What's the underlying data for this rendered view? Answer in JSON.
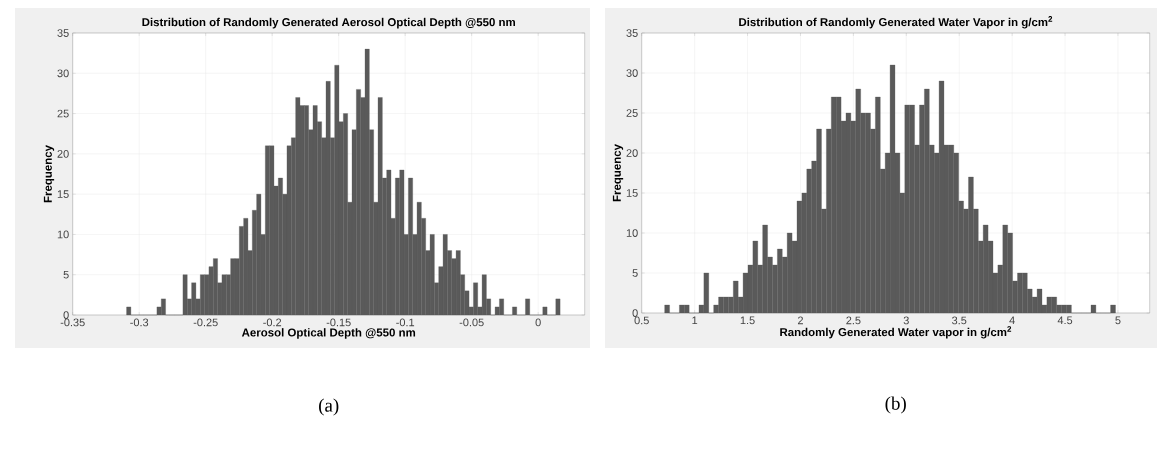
{
  "chart_data": [
    {
      "type": "histogram",
      "title": "Distribution of Randomly Generated Aerosol Optical Depth @550 nm",
      "xlabel": "Aerosol Optical Depth @550 nm",
      "ylabel": "Frequency",
      "color": "#5a5a5a",
      "bins": [
        -0.3095,
        -0.30624,
        -0.30298,
        -0.29972,
        -0.29646,
        -0.2932,
        -0.28994,
        -0.28668,
        -0.28342,
        -0.28016,
        -0.2769,
        -0.27364,
        -0.27038,
        -0.26712,
        -0.26386,
        -0.2606,
        -0.25734,
        -0.25408,
        -0.25082,
        -0.24756,
        -0.2443,
        -0.24104,
        -0.23778,
        -0.23452,
        -0.23126,
        -0.228,
        -0.22474,
        -0.22148,
        -0.21822,
        -0.21496,
        -0.2117,
        -0.20844,
        -0.20518,
        -0.20192,
        -0.19866,
        -0.1954,
        -0.19214,
        -0.18888,
        -0.18562,
        -0.18236,
        -0.1791,
        -0.17584,
        -0.17258,
        -0.16932,
        -0.16606,
        -0.1628,
        -0.15954,
        -0.15628,
        -0.15302,
        -0.14976,
        -0.1465,
        -0.14324,
        -0.13998,
        -0.13672,
        -0.13346,
        -0.1302,
        -0.12694,
        -0.12368,
        -0.12042,
        -0.11716,
        -0.1139,
        -0.11064,
        -0.10738,
        -0.10412,
        -0.10086,
        -0.0976,
        -0.09434,
        -0.09108,
        -0.08782,
        -0.08456,
        -0.0813,
        -0.07804,
        -0.07478,
        -0.07152,
        -0.06826,
        -0.065,
        -0.06174,
        -0.05848,
        -0.05522,
        -0.05196,
        -0.0487,
        -0.04544,
        -0.04218,
        -0.03892,
        -0.03566,
        -0.0324,
        -0.02914,
        -0.02588,
        -0.02262,
        -0.01936,
        -0.0161,
        -0.01284,
        -0.00958,
        -0.00632,
        -0.00306,
        0.0002,
        0.00346,
        0.00672,
        0.00998,
        0.01324,
        0.0165
      ],
      "values": [
        1,
        0,
        0,
        0,
        0,
        0,
        0,
        1,
        2,
        0,
        0,
        0,
        0,
        5,
        2,
        4,
        2,
        5,
        5,
        6,
        7,
        4,
        5,
        5,
        7,
        7,
        11,
        12,
        8,
        13,
        15,
        10,
        21,
        21,
        16,
        17,
        15,
        21,
        22,
        27,
        26,
        26,
        23,
        26,
        24,
        22,
        29,
        22,
        31,
        24,
        25,
        14,
        23,
        28,
        27,
        33,
        23,
        14,
        27,
        17,
        18,
        12,
        17,
        18,
        10,
        17,
        10,
        14,
        12,
        8,
        10,
        4,
        6,
        10,
        8,
        7,
        8,
        5,
        3,
        1,
        4,
        1,
        5,
        2,
        0,
        1,
        2,
        0,
        0,
        1,
        0,
        0,
        2,
        0,
        0,
        0,
        1,
        0,
        0,
        2
      ],
      "xlim": [
        -0.35,
        0.035
      ],
      "ylim": [
        0,
        35
      ],
      "xticks": [
        -0.35,
        -0.3,
        -0.25,
        -0.2,
        -0.15,
        -0.1,
        -0.05,
        0
      ],
      "yticks": [
        0,
        5,
        10,
        15,
        20,
        25,
        30,
        35
      ],
      "grid": true,
      "annotations": [
        "(a)"
      ]
    },
    {
      "type": "histogram",
      "title": "Distribution of Randomly Generated Water Vapor in g/cm$^{2}$",
      "xlabel": "Randomly Generated Water vapor in g/cm$^{2}$",
      "ylabel": "Frequency",
      "color": "#5a5a5a",
      "bins": [
        0.717,
        0.7633,
        0.8096,
        0.8559,
        0.9022,
        0.9485,
        0.9948,
        1.0411,
        1.0874,
        1.1337,
        1.18,
        1.2263,
        1.2726,
        1.3189,
        1.3652,
        1.4115,
        1.4578,
        1.5041,
        1.5504,
        1.5967,
        1.643,
        1.6893,
        1.7356,
        1.7819,
        1.8282,
        1.8745,
        1.9208,
        1.9671,
        2.0134,
        2.0597,
        2.106,
        2.1523,
        2.1986,
        2.2449,
        2.2912,
        2.3375,
        2.3838,
        2.4301,
        2.4764,
        2.5227,
        2.569,
        2.6153,
        2.6616,
        2.7079,
        2.7542,
        2.8005,
        2.8468,
        2.8931,
        2.9394,
        2.9857,
        3.032,
        3.0783,
        3.1246,
        3.1709,
        3.2172,
        3.2635,
        3.3098,
        3.3561,
        3.4024,
        3.4487,
        3.495,
        3.5413,
        3.5876,
        3.6339,
        3.6802,
        3.7265,
        3.7728,
        3.8191,
        3.8654,
        3.9117,
        3.958,
        4.0043,
        4.0506,
        4.0969,
        4.1432,
        4.1895,
        4.2358,
        4.2821,
        4.3284,
        4.3747,
        4.421,
        4.4673,
        4.5136,
        4.5599,
        4.6062,
        4.6525,
        4.6988,
        4.7451,
        4.7914,
        4.8377,
        4.884,
        4.9303,
        4.9766
      ],
      "values": [
        1,
        0,
        0,
        1,
        1,
        0,
        0,
        1,
        5,
        0,
        1,
        2,
        2,
        2,
        4,
        2,
        5,
        6,
        9,
        6,
        11,
        7,
        6,
        8,
        7,
        10,
        9,
        14,
        15,
        18,
        19,
        23,
        13,
        23,
        27,
        27,
        24,
        25,
        24,
        28,
        25,
        25,
        23,
        27,
        18,
        20,
        31,
        20,
        15,
        26,
        26,
        21,
        26,
        28,
        21,
        20,
        29,
        21,
        21,
        20,
        14,
        13,
        17,
        13,
        9,
        11,
        9,
        5,
        6,
        11,
        10,
        4,
        5,
        5,
        3,
        2,
        3,
        1,
        2,
        2,
        1,
        1,
        1,
        0,
        0,
        0,
        0,
        1,
        0,
        0,
        0,
        1
      ],
      "xlim": [
        0.5,
        5.3
      ],
      "ylim": [
        0,
        35
      ],
      "xticks": [
        0.5,
        1,
        1.5,
        2,
        2.5,
        3,
        3.5,
        4,
        4.5,
        5
      ],
      "yticks": [
        0,
        5,
        10,
        15,
        20,
        25,
        30,
        35
      ],
      "grid": true,
      "annotations": [
        "(b)"
      ]
    }
  ]
}
